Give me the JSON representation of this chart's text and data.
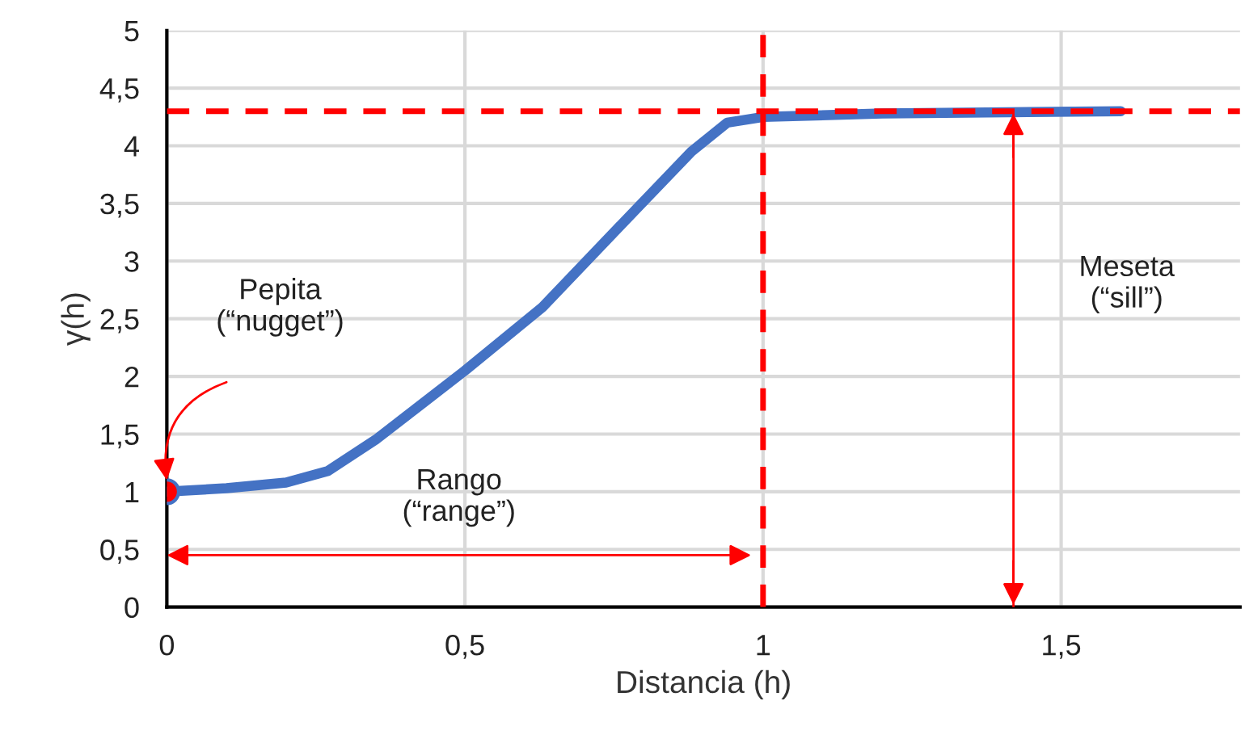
{
  "chart_data": {
    "type": "line",
    "xlabel": "Distancia (h)",
    "ylabel": "γ(h)",
    "series": [
      {
        "color": "#4472c4",
        "x": [
          0,
          0.1,
          0.2,
          0.27,
          0.35,
          0.5,
          0.63,
          0.75,
          0.88,
          0.94,
          1.0,
          1.2,
          1.6
        ],
        "values": [
          1.0,
          1.03,
          1.08,
          1.18,
          1.45,
          2.05,
          2.6,
          3.25,
          3.95,
          4.2,
          4.25,
          4.28,
          4.3
        ],
        "marker": "none",
        "line_style": "solid"
      },
      {
        "type": "scatter",
        "color": "#ff0000",
        "x": [
          0
        ],
        "values": [
          1.0
        ],
        "marker": "circle"
      },
      {
        "type": "line",
        "color": "#ff0000",
        "x": [
          1.42,
          1.42
        ],
        "values": [
          0,
          4.3
        ],
        "marker": "none",
        "line_style": "solid"
      }
    ],
    "xlim": [
      0,
      1.8
    ],
    "ylim": [
      0,
      5
    ],
    "xticks": [
      0,
      {
        "value": 0.5,
        "label": "0,5"
      },
      1,
      {
        "value": 1.5,
        "label": "1,5"
      }
    ],
    "yticks": [
      0,
      {
        "value": 0.5,
        "label": "0,5"
      },
      1,
      {
        "value": 1.5,
        "label": "1,5"
      },
      2,
      {
        "value": 2.5,
        "label": "2,5"
      },
      3,
      {
        "value": 3.5,
        "label": "3,5"
      },
      4,
      {
        "value": 4.5,
        "label": "4,5"
      },
      5
    ],
    "grid": true,
    "legend": false,
    "ref_lines": [
      {
        "axis": "y",
        "value": 4.3,
        "color": "#ff0000",
        "line_style": "dashed"
      },
      {
        "axis": "x",
        "value": 1,
        "color": "#ff0000",
        "line_style": "dashed"
      }
    ],
    "annotations": [
      "Pepita\n(“nugget”)",
      "Rango\n(“range”)",
      "Meseta\n(“sill”)"
    ]
  }
}
